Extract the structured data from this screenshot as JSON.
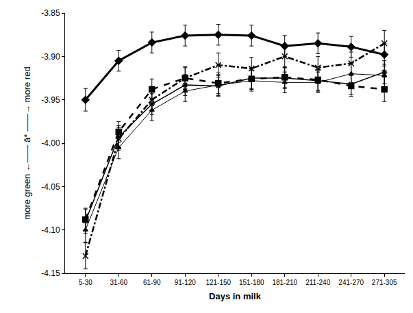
{
  "chart_data": {
    "type": "line",
    "x_label": "Days in milk",
    "y_label": "more green ←—— â* ——→ more red",
    "categories": [
      "5-30",
      "31-60",
      "61-90",
      "91-120",
      "121-150",
      "151-180",
      "181-210",
      "211-240",
      "241-270",
      "271-305"
    ],
    "ylim": [
      -4.15,
      -3.85
    ],
    "yticks": [
      -4.15,
      {
        "value": -4.1,
        "label": "-4.10"
      },
      -4.05,
      {
        "value": -4,
        "label": "-4.00"
      },
      -3.95,
      {
        "value": -3.9,
        "label": "-3.90"
      },
      -3.85
    ],
    "grid": false,
    "series": [
      {
        "color": "#000000",
        "marker": "diamond",
        "line_style": "solid",
        "values": [
          -3.95,
          -3.905,
          -3.884,
          -3.876,
          -3.875,
          -3.876,
          -3.888,
          -3.885,
          -3.889,
          -3.898
        ],
        "errors": [
          0.013,
          0.012,
          0.012,
          0.012,
          0.012,
          0.012,
          0.012,
          0.012,
          0.012,
          0.013
        ]
      },
      {
        "color": "#000000",
        "marker": "x",
        "line_style": "dashdot",
        "values": [
          -4.13,
          -3.995,
          -3.95,
          -3.925,
          -3.91,
          -3.914,
          -3.9,
          -3.913,
          -3.908,
          -3.885
        ],
        "errors": [
          0.015,
          0.013,
          0.013,
          0.013,
          0.014,
          0.013,
          0.013,
          0.013,
          0.013,
          0.015
        ]
      },
      {
        "color": "#000000",
        "marker": "square",
        "line_style": "dash",
        "values": [
          -4.088,
          -3.987,
          -3.938,
          -3.925,
          -3.931,
          -3.926,
          -3.924,
          -3.927,
          -3.934,
          -3.938
        ],
        "errors": [
          0.013,
          0.012,
          0.012,
          0.012,
          0.012,
          0.012,
          0.012,
          0.012,
          0.012,
          0.014
        ]
      },
      {
        "color": "#000000",
        "marker": "asterisk",
        "line_style": "solid",
        "values": [
          -4.09,
          -3.993,
          -3.955,
          -3.933,
          -3.934,
          -3.925,
          -3.925,
          -3.928,
          -3.932,
          -3.918
        ],
        "errors": [
          0.014,
          0.013,
          0.012,
          0.012,
          0.012,
          0.012,
          0.012,
          0.012,
          0.012,
          0.013
        ]
      },
      {
        "color": "#000000",
        "marker": "triangle-up",
        "line_style": "solid",
        "values": [
          -4.1,
          -4.005,
          -3.962,
          -3.94,
          -3.933,
          -3.928,
          -3.93,
          -3.93,
          -3.92,
          -3.922
        ],
        "errors": [
          0.014,
          0.013,
          0.012,
          0.012,
          0.012,
          0.012,
          0.012,
          0.012,
          0.012,
          0.013
        ]
      }
    ]
  }
}
